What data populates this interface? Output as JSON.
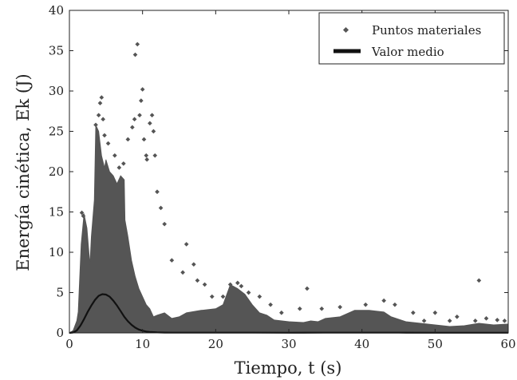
{
  "chart_data": {
    "type": "scatter",
    "title": "",
    "xlabel": "Tiempo, t (s)",
    "ylabel": "Energía cinética, Ek (J)",
    "xlim": [
      0,
      60
    ],
    "ylim": [
      0,
      40
    ],
    "xticks": [
      0,
      10,
      20,
      30,
      40,
      50,
      60
    ],
    "yticks": [
      0,
      5,
      10,
      15,
      20,
      25,
      30,
      35,
      40
    ],
    "grid": false,
    "legend_position": "top-right",
    "series": [
      {
        "name": "Puntos materiales",
        "kind": "scatter-envelope",
        "color": "#555555",
        "envelope": {
          "x": [
            0,
            0.5,
            1.0,
            1.2,
            1.6,
            2.0,
            2.4,
            2.8,
            3.0,
            3.4,
            3.6,
            4.0,
            4.4,
            4.8,
            5.0,
            5.5,
            6.0,
            6.5,
            7.0,
            7.5,
            7.6,
            8.0,
            8.5,
            9.0,
            9.5,
            10.0,
            10.5,
            11.0,
            11.5,
            12.0,
            13.0,
            14.0,
            15.0,
            16.0,
            18.0,
            20.0,
            21.0,
            22.0,
            23.0,
            24.0,
            25.0,
            26.0,
            27.0,
            28.0,
            30.0,
            32.0,
            33.0,
            34.0,
            35.0,
            37.0,
            39.0,
            41.0,
            43.0,
            44.0,
            46.0,
            48.0,
            50.0,
            52.0,
            54.0,
            56.0,
            58.0,
            60.0
          ],
          "y": [
            0,
            0.3,
            1.5,
            2.6,
            11.0,
            14.8,
            13.0,
            8.5,
            12.0,
            16.5,
            25.8,
            25.0,
            22.0,
            20.5,
            21.5,
            20.0,
            19.5,
            18.5,
            19.5,
            19.0,
            14.0,
            12.0,
            9.0,
            7.0,
            5.5,
            4.5,
            3.5,
            3.0,
            2.0,
            2.2,
            2.5,
            1.8,
            2.0,
            2.5,
            2.8,
            3.0,
            3.5,
            6.0,
            5.5,
            4.8,
            3.5,
            2.5,
            2.2,
            1.6,
            1.4,
            1.3,
            1.5,
            1.4,
            1.8,
            2.0,
            2.8,
            2.8,
            2.6,
            2.0,
            1.4,
            1.2,
            1.0,
            0.8,
            0.9,
            1.2,
            1.0,
            1.1
          ]
        },
        "outliers": [
          [
            1.7,
            14.9
          ],
          [
            1.9,
            14.5
          ],
          [
            2.2,
            12.0
          ],
          [
            3.6,
            25.8
          ],
          [
            4.0,
            27.0
          ],
          [
            4.2,
            28.5
          ],
          [
            4.4,
            29.2
          ],
          [
            4.6,
            26.5
          ],
          [
            4.8,
            24.5
          ],
          [
            5.3,
            23.5
          ],
          [
            6.2,
            22.0
          ],
          [
            6.8,
            20.5
          ],
          [
            7.4,
            21.0
          ],
          [
            8.0,
            24.0
          ],
          [
            8.6,
            25.5
          ],
          [
            8.9,
            26.5
          ],
          [
            9.0,
            34.5
          ],
          [
            9.3,
            35.8
          ],
          [
            9.6,
            27.0
          ],
          [
            9.8,
            28.8
          ],
          [
            10.0,
            30.2
          ],
          [
            10.2,
            24.0
          ],
          [
            10.5,
            22.0
          ],
          [
            10.6,
            21.5
          ],
          [
            11.0,
            26.0
          ],
          [
            11.3,
            27.0
          ],
          [
            11.5,
            25.0
          ],
          [
            11.7,
            22.0
          ],
          [
            12.0,
            17.5
          ],
          [
            12.5,
            15.5
          ],
          [
            13.0,
            13.5
          ],
          [
            14.0,
            9.0
          ],
          [
            15.5,
            7.5
          ],
          [
            16.0,
            11.0
          ],
          [
            17.0,
            8.5
          ],
          [
            17.5,
            6.5
          ],
          [
            18.5,
            6.0
          ],
          [
            19.5,
            4.5
          ],
          [
            21.0,
            4.5
          ],
          [
            22.0,
            6.0
          ],
          [
            23.0,
            6.2
          ],
          [
            23.5,
            5.8
          ],
          [
            24.5,
            5.0
          ],
          [
            26.0,
            4.5
          ],
          [
            27.5,
            3.5
          ],
          [
            29.0,
            2.5
          ],
          [
            31.5,
            3.0
          ],
          [
            32.5,
            5.5
          ],
          [
            34.5,
            3.0
          ],
          [
            37.0,
            3.2
          ],
          [
            40.5,
            3.5
          ],
          [
            43.0,
            4.0
          ],
          [
            44.5,
            3.5
          ],
          [
            47.0,
            2.5
          ],
          [
            48.5,
            1.5
          ],
          [
            50.0,
            2.5
          ],
          [
            52.0,
            1.5
          ],
          [
            53.0,
            2.0
          ],
          [
            55.5,
            1.5
          ],
          [
            56.0,
            6.5
          ],
          [
            57.0,
            1.8
          ],
          [
            58.5,
            1.6
          ],
          [
            59.5,
            1.5
          ]
        ]
      },
      {
        "name": "Valor medio",
        "kind": "line",
        "color": "#111111",
        "x": [
          0,
          0.5,
          1,
          1.5,
          2,
          2.5,
          3,
          3.5,
          4,
          4.5,
          5,
          5.5,
          6,
          6.5,
          7,
          7.5,
          8,
          8.5,
          9,
          9.5,
          10,
          10.5,
          11,
          12,
          13,
          14,
          16,
          18,
          20,
          25,
          30,
          35,
          40,
          45,
          50,
          55,
          60
        ],
        "y": [
          0,
          0.05,
          0.3,
          0.9,
          1.7,
          2.6,
          3.4,
          4.1,
          4.6,
          4.8,
          4.75,
          4.5,
          4.0,
          3.4,
          2.7,
          2.0,
          1.45,
          1.0,
          0.65,
          0.42,
          0.27,
          0.17,
          0.11,
          0.06,
          0.04,
          0.03,
          0.03,
          0.03,
          0.03,
          0.03,
          0.02,
          0.03,
          0.03,
          0.03,
          0.02,
          0.02,
          0.02
        ]
      }
    ]
  }
}
